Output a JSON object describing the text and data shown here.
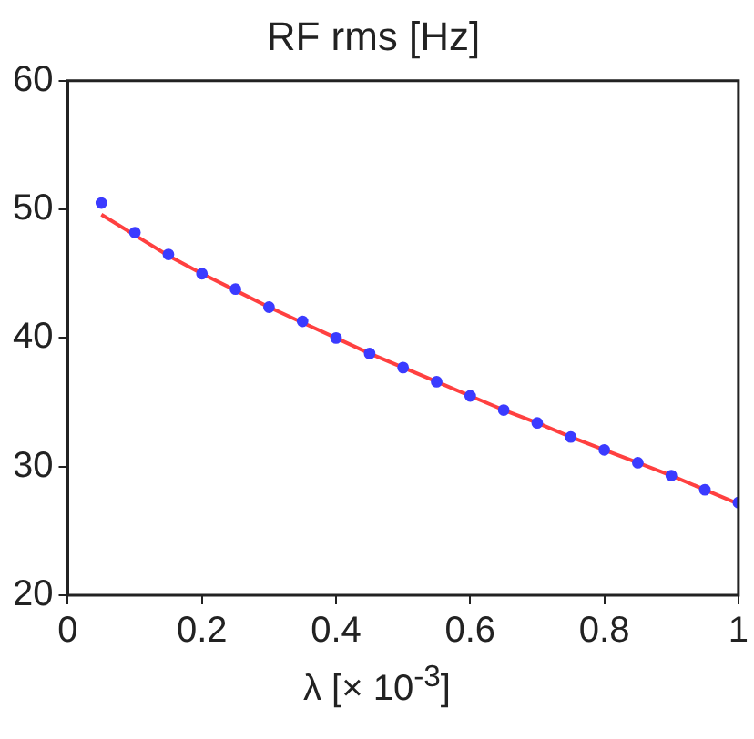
{
  "chart_data": {
    "type": "scatter",
    "title": "RF rms [Hz]",
    "xlabel": "λ [× 10$^{-3}$]",
    "x": [
      0.05,
      0.1,
      0.15,
      0.2,
      0.25,
      0.3,
      0.35,
      0.4,
      0.45,
      0.5,
      0.55,
      0.6,
      0.65,
      0.7,
      0.75,
      0.8,
      0.85,
      0.9,
      0.95,
      1.0
    ],
    "series": [
      {
        "type": "line",
        "color": "#ff4040",
        "marker": "none",
        "line_style": "solid",
        "values": [
          49.6,
          48.0,
          46.4,
          45.0,
          43.7,
          42.4,
          41.2,
          40.0,
          38.8,
          37.7,
          36.6,
          35.5,
          34.4,
          33.4,
          32.3,
          31.3,
          30.3,
          29.3,
          28.2,
          27.1
        ]
      },
      {
        "color": "#3b3bff",
        "marker": "circle",
        "values": [
          50.5,
          48.2,
          46.5,
          45.0,
          43.8,
          42.4,
          41.3,
          40.0,
          38.8,
          37.7,
          36.6,
          35.5,
          34.4,
          33.4,
          32.3,
          31.3,
          30.3,
          29.3,
          28.2,
          27.2
        ]
      }
    ],
    "xlim": [
      0,
      1
    ],
    "xticks": [
      0,
      0.2,
      0.4,
      0.6,
      0.8,
      1
    ],
    "ylim": [
      20,
      60
    ],
    "yticks": [
      20,
      30,
      40,
      50,
      60
    ],
    "grid": false,
    "legend": false
  }
}
